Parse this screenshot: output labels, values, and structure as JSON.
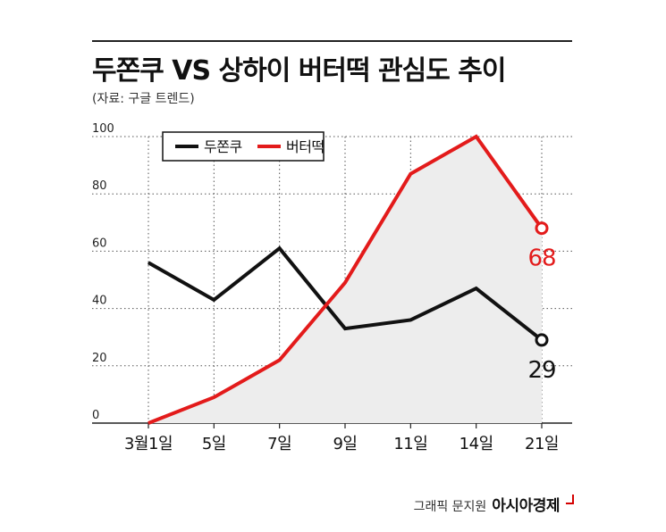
{
  "header": {
    "title": "두쫀쿠 VS 상하이 버터떡 관심도 추이",
    "source": "(자료: 구글 트렌드)"
  },
  "footer": {
    "credit": "그래픽 문지원",
    "brand": "아시아경제"
  },
  "colors": {
    "series_black": "#111111",
    "series_red": "#e31b1b",
    "area_fill": "#ededed",
    "grid": "#555555"
  },
  "chart_data": {
    "type": "line",
    "categories": [
      "3월1일",
      "5일",
      "7일",
      "9일",
      "11일",
      "14일",
      "21일"
    ],
    "ylim": [
      0,
      100
    ],
    "yticks": [
      0,
      20,
      40,
      60,
      80,
      100
    ],
    "grid": "dotted-horizontal",
    "legend_position": "top-left",
    "xlabel": "",
    "ylabel": "",
    "series": [
      {
        "name": "두쫀쿠",
        "color": "#111111",
        "values": [
          56,
          43,
          61,
          33,
          36,
          47,
          29
        ],
        "end_label": "29"
      },
      {
        "name": "버터떡",
        "color": "#e31b1b",
        "values": [
          0,
          9,
          22,
          49,
          87,
          100,
          68
        ],
        "end_label": "68",
        "shaded": true
      }
    ]
  }
}
